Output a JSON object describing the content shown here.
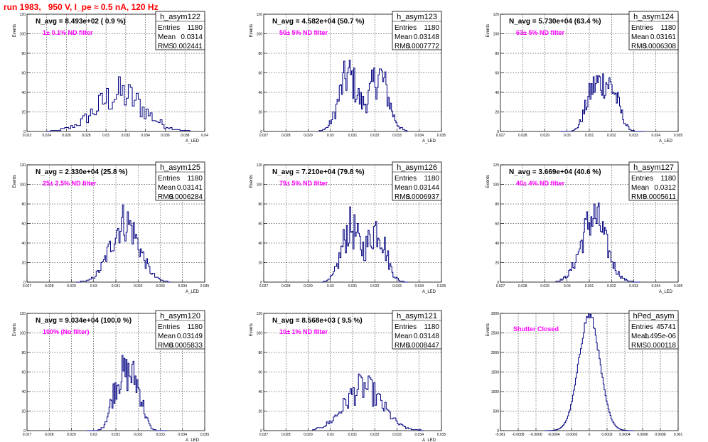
{
  "header": {
    "run_title": "run 1983,   950 V, I_pe ≈ 0.5 nA, 120 Hz"
  },
  "colors": {
    "histogram_line": "#000080",
    "title_red": "#ff0000",
    "annotation_magenta": "#ff00ff",
    "grid": "#000000"
  },
  "stats_labels": {
    "entries": "Entries",
    "mean": "Mean",
    "rms": "RMS"
  },
  "chart_data": [
    {
      "type": "bar",
      "name": "h_asym122",
      "navg": "N_avg = 8.493e+02 ( 0.9 %)",
      "annotation": "1± 0.1% ND filter",
      "stats": {
        "entries": "1180",
        "mean": "0.0314",
        "rms": "0.002441"
      },
      "ylabel": "Events",
      "xlabel": "A_LED",
      "xlim": [
        0.022,
        0.04
      ],
      "ylim": [
        0,
        120
      ],
      "yticks": [
        0,
        20,
        40,
        60,
        80,
        100,
        120
      ],
      "xticks": [
        0.022,
        0.024,
        0.026,
        0.028,
        0.03,
        0.032,
        0.034,
        0.036,
        0.038,
        0.04
      ],
      "xtick_labels": [
        "0.022",
        "0.024",
        "0.026",
        "0.028",
        "0.03",
        "0.032",
        "0.034",
        "0.036",
        "0.038",
        "0.04"
      ],
      "dist": {
        "mu": 0.0314,
        "sigma": 0.0024,
        "peak": 38,
        "bins": 72,
        "range": [
          0.024,
          0.0385
        ],
        "amp": 0.5
      }
    },
    {
      "type": "bar",
      "name": "h_asym123",
      "navg": "N_avg = 4.582e+04 (50.7 %)",
      "annotation": "50± 5% ND filter",
      "stats": {
        "entries": "1180",
        "mean": "0.03148",
        "rms": "0.0007772"
      },
      "ylabel": "Events",
      "xlabel": "A_LED",
      "xlim": [
        0.027,
        0.035
      ],
      "ylim": [
        0,
        120
      ],
      "yticks": [
        0,
        20,
        40,
        60,
        80,
        100,
        120
      ],
      "xticks": [
        0.027,
        0.028,
        0.029,
        0.03,
        0.031,
        0.032,
        0.033,
        0.034,
        0.035
      ],
      "xtick_labels": [
        "0.027",
        "0.028",
        "0.029",
        "0.03",
        "0.031",
        "0.032",
        "0.033",
        "0.034",
        "0.035"
      ],
      "dist": {
        "mu": 0.03148,
        "sigma": 0.00075,
        "peak": 58,
        "bins": 80,
        "range": [
          0.0295,
          0.0335
        ],
        "bimodal": [
          0.0308,
          0.0322
        ],
        "amp": 0.4
      }
    },
    {
      "type": "bar",
      "name": "h_asym124",
      "navg": "N_avg = 5.730e+04 (63.4 %)",
      "annotation": "63± 5% ND filter",
      "stats": {
        "entries": "1180",
        "mean": "0.03161",
        "rms": "0.0006308"
      },
      "ylabel": "Events",
      "xlabel": "A_LED",
      "xlim": [
        0.027,
        0.035
      ],
      "ylim": [
        0,
        120
      ],
      "yticks": [
        0,
        20,
        40,
        60,
        80,
        100,
        120
      ],
      "xticks": [
        0.027,
        0.028,
        0.029,
        0.03,
        0.031,
        0.032,
        0.033,
        0.034,
        0.035
      ],
      "xtick_labels": [
        "0.027",
        "0.028",
        "0.029",
        "0.03",
        "0.031",
        "0.032",
        "0.033",
        "0.034",
        "0.035"
      ],
      "dist": {
        "mu": 0.0316,
        "sigma": 0.00063,
        "peak": 50,
        "bins": 80,
        "range": [
          0.0297,
          0.0335
        ],
        "flat": true,
        "amp": 0.35
      }
    },
    {
      "type": "bar",
      "name": "h_asym125",
      "navg": "N_avg = 2.330e+04 (25.8 %)",
      "annotation": "25± 2.5% ND filter",
      "stats": {
        "entries": "1180",
        "mean": "0.03141",
        "rms": "0.0006284"
      },
      "ylabel": "Events",
      "xlabel": "A_LED",
      "xlim": [
        0.027,
        0.035
      ],
      "ylim": [
        0,
        120
      ],
      "yticks": [
        0,
        20,
        40,
        60,
        80,
        100,
        120
      ],
      "xticks": [
        0.027,
        0.028,
        0.029,
        0.03,
        0.031,
        0.032,
        0.033,
        0.034,
        0.035
      ],
      "xtick_labels": [
        "0.027",
        "0.028",
        "0.029",
        "0.03",
        "0.031",
        "0.032",
        "0.033",
        "0.034",
        "0.035"
      ],
      "dist": {
        "mu": 0.0314,
        "sigma": 0.00063,
        "peak": 62,
        "bins": 80,
        "range": [
          0.0292,
          0.0335
        ],
        "amp": 0.35
      }
    },
    {
      "type": "bar",
      "name": "h_asym126",
      "navg": "N_avg = 7.210e+04 (79.8 %)",
      "annotation": "79± 5% ND filter",
      "stats": {
        "entries": "1180",
        "mean": "0.03144",
        "rms": "0.0006937"
      },
      "ylabel": "Events",
      "xlabel": "A_LED",
      "xlim": [
        0.027,
        0.035
      ],
      "ylim": [
        0,
        120
      ],
      "yticks": [
        0,
        20,
        40,
        60,
        80,
        100,
        120
      ],
      "xticks": [
        0.027,
        0.028,
        0.029,
        0.03,
        0.031,
        0.032,
        0.033,
        0.034,
        0.035
      ],
      "xtick_labels": [
        "0.027",
        "0.028",
        "0.029",
        "0.03",
        "0.031",
        "0.032",
        "0.033",
        "0.034",
        "0.035"
      ],
      "dist": {
        "mu": 0.03144,
        "sigma": 0.0007,
        "peak": 56,
        "bins": 80,
        "range": [
          0.0296,
          0.0335
        ],
        "bimodal": [
          0.0309,
          0.0321
        ],
        "amp": 0.4
      }
    },
    {
      "type": "bar",
      "name": "h_asym127",
      "navg": "N_avg = 3.669e+04 (40.6 %)",
      "annotation": "40± 4% ND filter",
      "stats": {
        "entries": "1180",
        "mean": "0.0312",
        "rms": "0.0005611"
      },
      "ylabel": "Events",
      "xlabel": "A_LED",
      "xlim": [
        0.027,
        0.035
      ],
      "ylim": [
        0,
        120
      ],
      "yticks": [
        0,
        20,
        40,
        60,
        80,
        100,
        120
      ],
      "xticks": [
        0.027,
        0.028,
        0.029,
        0.03,
        0.031,
        0.032,
        0.033,
        0.034,
        0.035
      ],
      "xtick_labels": [
        "0.027",
        "0.028",
        "0.029",
        "0.03",
        "0.031",
        "0.032",
        "0.033",
        "0.034",
        "0.035"
      ],
      "dist": {
        "mu": 0.0312,
        "sigma": 0.00056,
        "peak": 66,
        "bins": 80,
        "range": [
          0.0295,
          0.0333
        ],
        "amp": 0.35
      }
    },
    {
      "type": "bar",
      "name": "h_asym120",
      "navg": "N_avg = 9.034e+04 (100.0 %)",
      "annotation": "100% (No filter)",
      "stats": {
        "entries": "1180",
        "mean": "0.03149",
        "rms": "0.0005833"
      },
      "ylabel": "Events",
      "xlabel": "A_LED",
      "xlim": [
        0.027,
        0.035
      ],
      "ylim": [
        0,
        120
      ],
      "yticks": [
        0,
        20,
        40,
        60,
        80,
        100,
        120
      ],
      "xticks": [
        0.027,
        0.028,
        0.029,
        0.03,
        0.031,
        0.032,
        0.033,
        0.034,
        0.035
      ],
      "xtick_labels": [
        "0.027",
        "0.028",
        "0.029",
        "0.03",
        "0.031",
        "0.032",
        "0.033",
        "0.034",
        "0.035"
      ],
      "dist": {
        "mu": 0.03149,
        "sigma": 0.00058,
        "peak": 58,
        "bins": 80,
        "range": [
          0.0297,
          0.0333
        ],
        "flat": true,
        "amp": 0.35
      }
    },
    {
      "type": "bar",
      "name": "h_asym121",
      "navg": "N_avg = 8.568e+03 ( 9.5 %)",
      "annotation": "10± 1% ND filter",
      "stats": {
        "entries": "1180",
        "mean": "0.03148",
        "rms": "0.0008447"
      },
      "ylabel": "Events",
      "xlabel": "A_LED",
      "xlim": [
        0.027,
        0.035
      ],
      "ylim": [
        0,
        120
      ],
      "yticks": [
        0,
        20,
        40,
        60,
        80,
        100,
        120
      ],
      "xticks": [
        0.027,
        0.028,
        0.029,
        0.03,
        0.031,
        0.032,
        0.033,
        0.034,
        0.035
      ],
      "xtick_labels": [
        "0.027",
        "0.028",
        "0.029",
        "0.03",
        "0.031",
        "0.032",
        "0.033",
        "0.034",
        "0.035"
      ],
      "dist": {
        "mu": 0.03148,
        "sigma": 0.00084,
        "peak": 44,
        "bins": 80,
        "range": [
          0.0292,
          0.0342
        ],
        "amp": 0.35
      }
    },
    {
      "type": "bar",
      "name": "hPed_asym",
      "navg": "",
      "annotation": "Shutter Closed",
      "stats": {
        "entries": "45741",
        "mean": "1.495e-06",
        "rms": "0.000118"
      },
      "ylabel": "Events",
      "xlabel": "",
      "xlim": [
        -0.001,
        0.001
      ],
      "ylim": [
        0,
        3000
      ],
      "yticks": [
        0,
        500,
        1000,
        1500,
        2000,
        2500,
        3000
      ],
      "xticks": [
        -0.001,
        -0.0008,
        -0.0006,
        -0.0004,
        -0.0002,
        0,
        0.0002,
        0.0004,
        0.0006,
        0.0008,
        0.001
      ],
      "xtick_labels": [
        "-0.001",
        "-0.0008",
        "-0.0006",
        "-0.0004",
        "-0.0002",
        "0",
        "0.0002",
        "0.0004",
        "0.0006",
        "0.0008",
        "0.001"
      ],
      "dist": {
        "mu": 0.0,
        "sigma": 0.000118,
        "peak": 2950,
        "bins": 90,
        "range": [
          -0.0005,
          0.0005
        ],
        "amp": 0.04
      }
    }
  ]
}
